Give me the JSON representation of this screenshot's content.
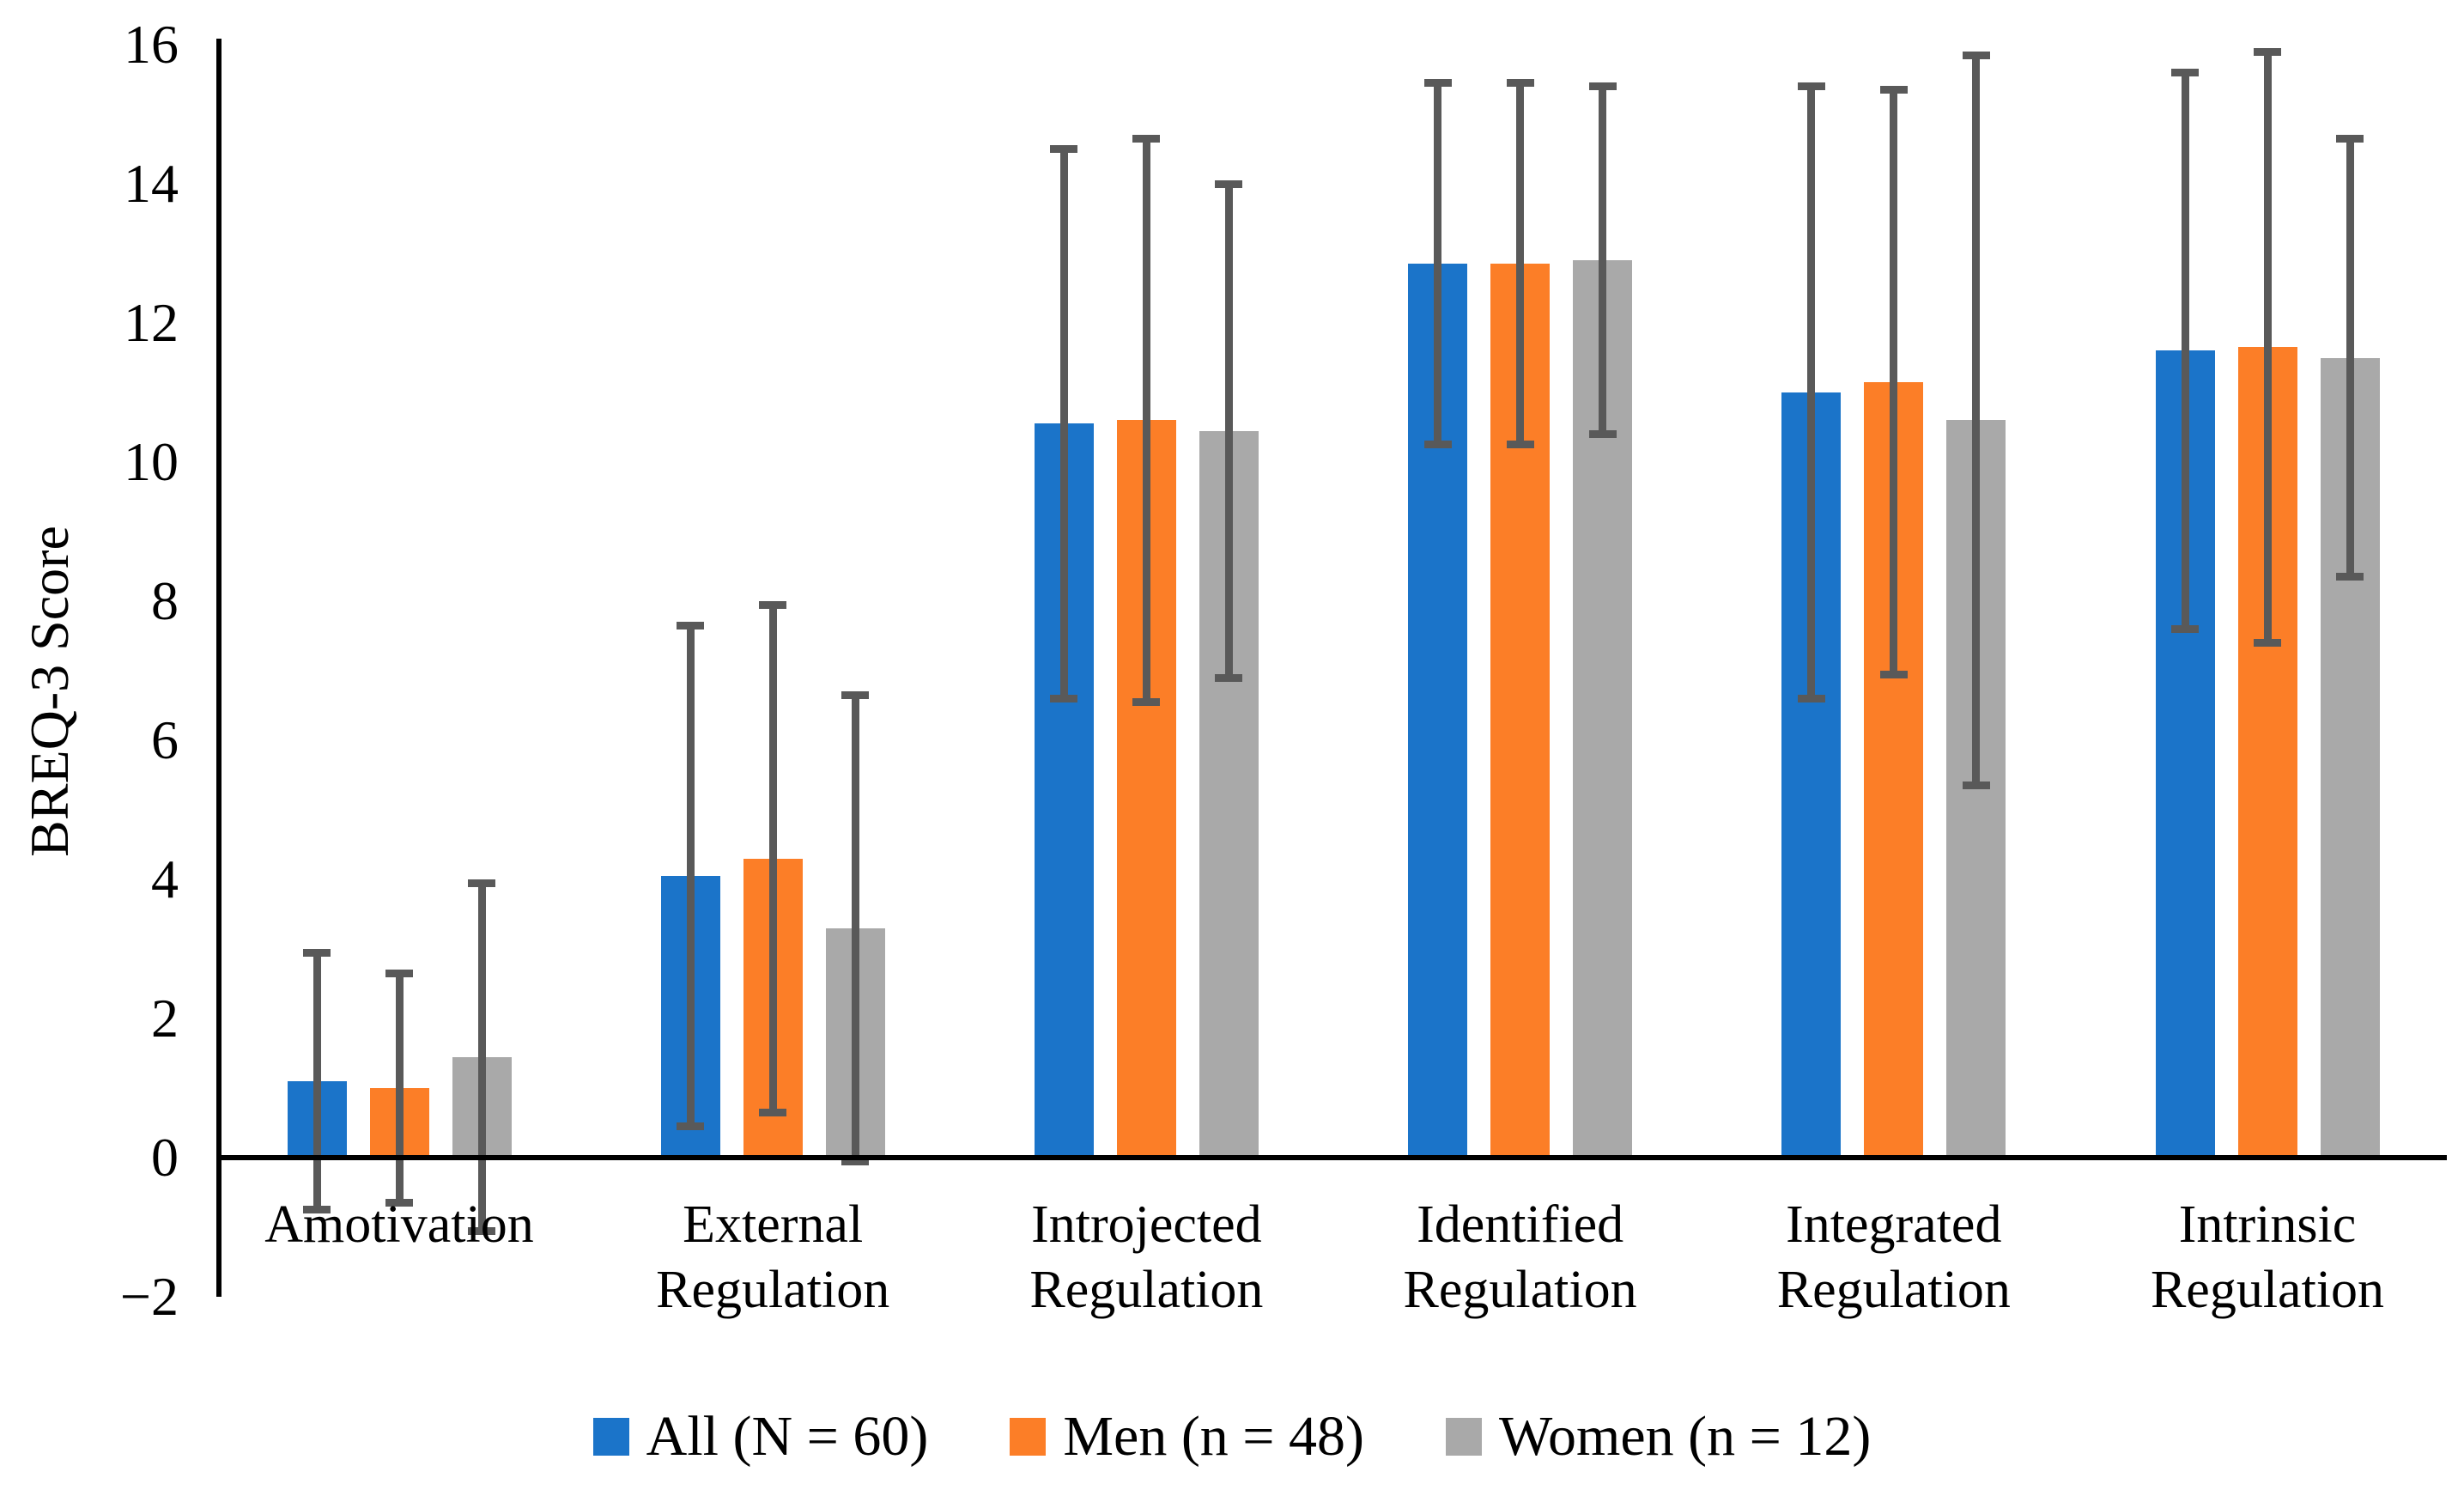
{
  "chart_data": {
    "type": "bar",
    "title": "",
    "xlabel": "",
    "ylabel": "BREQ-3 Score",
    "ylim": [
      -2,
      16
    ],
    "ytick_step": 2,
    "yticks": [
      16,
      14,
      12,
      10,
      8,
      6,
      4,
      2,
      0,
      -2
    ],
    "ytick_labels": [
      "16",
      "14",
      "12",
      "10",
      "8",
      "6",
      "4",
      "2",
      "0",
      "−2"
    ],
    "grid": false,
    "legend_position": "bottom",
    "error_bars": "symmetric, ± SD",
    "categories": [
      "Amotivation",
      "External Regulation",
      "Introjected Regulation",
      "Identified Regulation",
      "Integrated Regulation",
      "Intrinsic Regulation"
    ],
    "category_label_lines": [
      [
        "Amotivation"
      ],
      [
        "External",
        "Regulation"
      ],
      [
        "Introjected",
        "Regulation"
      ],
      [
        "Identified",
        "Regulation"
      ],
      [
        "Integrated",
        "Regulation"
      ],
      [
        "Intrinsic",
        "Regulation"
      ]
    ],
    "series": [
      {
        "name": "All (N = 60)",
        "color": "#1B74C9",
        "values": [
          1.1,
          4.05,
          10.55,
          12.85,
          11.0,
          11.6
        ],
        "errors": [
          1.85,
          3.6,
          3.95,
          2.6,
          4.4,
          4.0
        ]
      },
      {
        "name": "Men (n = 48)",
        "color": "#FC7E27",
        "values": [
          1.0,
          4.3,
          10.6,
          12.85,
          11.15,
          11.65
        ],
        "errors": [
          1.65,
          3.65,
          4.05,
          2.6,
          4.2,
          4.25
        ]
      },
      {
        "name": "Women (n = 12)",
        "color": "#A9A9A9",
        "values": [
          1.45,
          3.3,
          10.45,
          12.9,
          10.6,
          11.5
        ],
        "errors": [
          2.5,
          3.35,
          3.55,
          2.5,
          5.25,
          3.15
        ]
      }
    ],
    "error_bar_color": "#595959",
    "axis_color": "#000000",
    "background_color": "#FFFFFF"
  }
}
